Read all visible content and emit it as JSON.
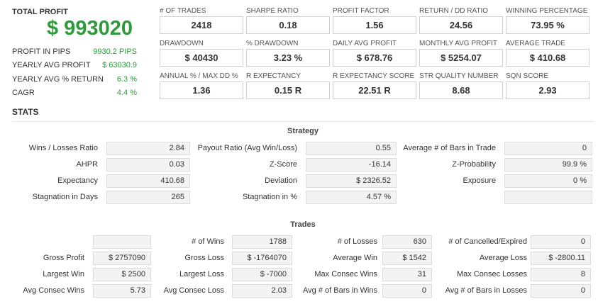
{
  "summary": {
    "total_profit_label": "TOTAL PROFIT",
    "total_profit_value": "$ 993020",
    "rows": [
      {
        "label": "PROFIT IN PIPS",
        "value": "9930.2 PIPS"
      },
      {
        "label": "YEARLY AVG PROFIT",
        "value": "$ 63030.9"
      },
      {
        "label": "YEARLY AVG % RETURN",
        "value": "6.3 %"
      },
      {
        "label": "CAGR",
        "value": "4.4 %"
      }
    ]
  },
  "metrics": [
    {
      "label": "# OF TRADES",
      "value": "2418"
    },
    {
      "label": "SHARPE RATIO",
      "value": "0.18"
    },
    {
      "label": "PROFIT FACTOR",
      "value": "1.56"
    },
    {
      "label": "RETURN / DD RATIO",
      "value": "24.56"
    },
    {
      "label": "WINNING PERCENTAGE",
      "value": "73.95 %"
    },
    {
      "label": "DRAWDOWN",
      "value": "$ 40430"
    },
    {
      "label": "% DRAWDOWN",
      "value": "3.23 %"
    },
    {
      "label": "DAILY AVG PROFIT",
      "value": "$ 678.76"
    },
    {
      "label": "MONTHLY AVG PROFIT",
      "value": "$ 5254.07"
    },
    {
      "label": "AVERAGE TRADE",
      "value": "$ 410.68"
    },
    {
      "label": "ANNUAL % / MAX DD %",
      "value": "1.36"
    },
    {
      "label": "R EXPECTANCY",
      "value": "0.15 R"
    },
    {
      "label": "R EXPECTANCY SCORE",
      "value": "22.51 R"
    },
    {
      "label": "STR QUALITY NUMBER",
      "value": "8.68"
    },
    {
      "label": "SQN SCORE",
      "value": "2.93"
    }
  ],
  "stats": {
    "title": "STATS",
    "strategy": {
      "title": "Strategy",
      "rows": [
        [
          {
            "label": "Wins / Losses Ratio",
            "value": "2.84"
          },
          {
            "label": "Payout Ratio (Avg Win/Loss)",
            "value": "0.55"
          },
          {
            "label": "Average # of Bars in Trade",
            "value": "0"
          }
        ],
        [
          {
            "label": "AHPR",
            "value": "0.03"
          },
          {
            "label": "Z-Score",
            "value": "-16.14"
          },
          {
            "label": "Z-Probability",
            "value": "99.9 %"
          }
        ],
        [
          {
            "label": "Expectancy",
            "value": "410.68"
          },
          {
            "label": "Deviation",
            "value": "$ 2326.52"
          },
          {
            "label": "Exposure",
            "value": "0 %"
          }
        ],
        [
          {
            "label": "Stagnation in Days",
            "value": "265"
          },
          {
            "label": "Stagnation in %",
            "value": "4.57 %"
          },
          {
            "label": "",
            "value": ""
          }
        ]
      ]
    },
    "trades": {
      "title": "Trades",
      "rows": [
        [
          {
            "label": "",
            "value": ""
          },
          {
            "label": "# of Wins",
            "value": "1788"
          },
          {
            "label": "# of Losses",
            "value": "630"
          },
          {
            "label": "# of Cancelled/Expired",
            "value": "0"
          }
        ],
        [
          {
            "label": "Gross Profit",
            "value": "$ 2757090"
          },
          {
            "label": "Gross Loss",
            "value": "$ -1764070"
          },
          {
            "label": "Average Win",
            "value": "$ 1542"
          },
          {
            "label": "Average Loss",
            "value": "$ -2800.11"
          }
        ],
        [
          {
            "label": "Largest Win",
            "value": "$ 2500"
          },
          {
            "label": "Largest Loss",
            "value": "$ -7000"
          },
          {
            "label": "Max Consec Wins",
            "value": "31"
          },
          {
            "label": "Max Consec Losses",
            "value": "8"
          }
        ],
        [
          {
            "label": "Avg Consec Wins",
            "value": "5.73"
          },
          {
            "label": "Avg Consec Loss",
            "value": "2.03"
          },
          {
            "label": "Avg # of Bars in Wins",
            "value": "0"
          },
          {
            "label": "Avg # of Bars in Losses",
            "value": "0"
          }
        ]
      ]
    }
  }
}
